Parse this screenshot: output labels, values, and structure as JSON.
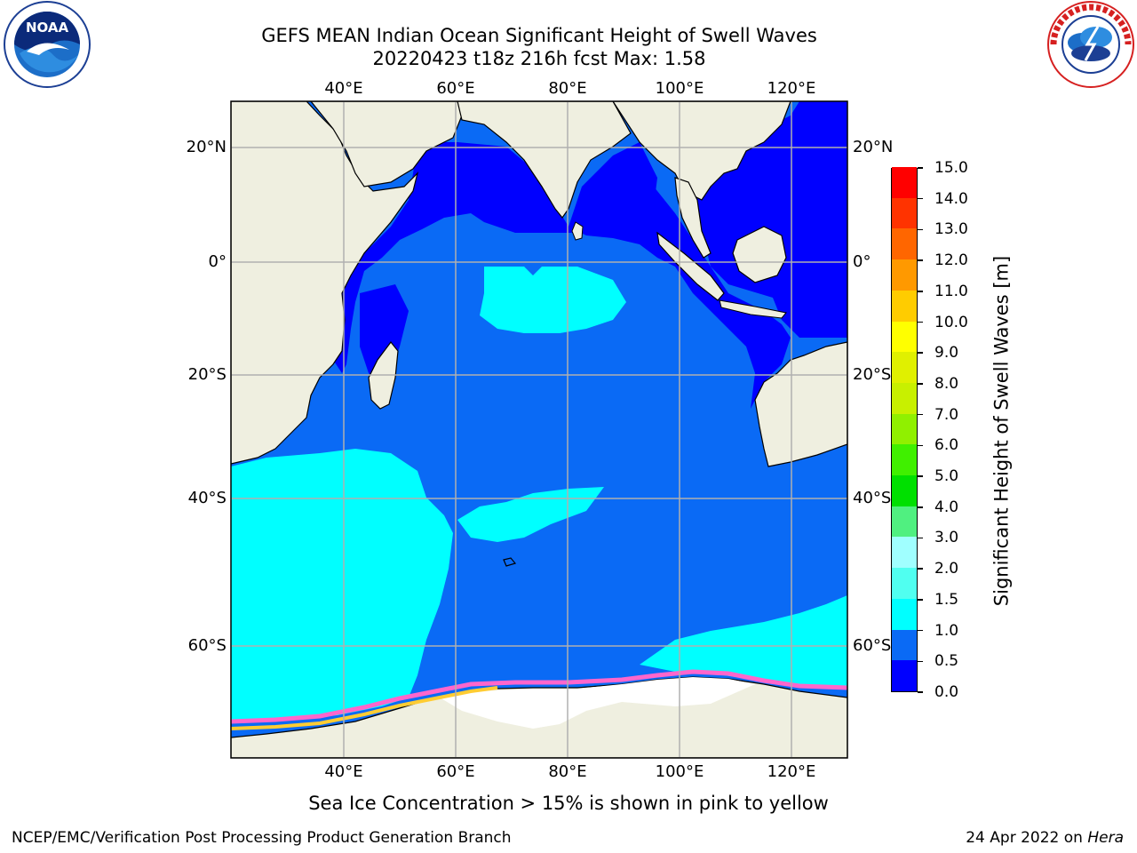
{
  "header": {
    "title_line1": "GEFS MEAN Indian Ocean Significant Height of Swell Waves",
    "title_line2": "20220423 t18z 216h fcst   Max: 1.58"
  },
  "logos": {
    "left": {
      "text": "NOAA",
      "ring_text": "NATIONAL OCEANIC AND ATMOSPHERIC ADMINISTRATION  U.S. DEPARTMENT OF COMMERCE"
    },
    "right": {
      "ring_text": "NATIONAL WEATHER SERVICE"
    }
  },
  "map": {
    "lon_labels": [
      "40°E",
      "60°E",
      "80°E",
      "100°E",
      "120°E"
    ],
    "lat_labels": [
      "20°N",
      "0°",
      "20°S",
      "40°S",
      "60°S"
    ],
    "colors": {
      "land": "#efefe0",
      "ice": "#ffffff",
      "deep_blue": "#0000ff",
      "mid_blue": "#0a6af5",
      "cyan": "#00ffff",
      "gridline": "#b0b0b0"
    }
  },
  "colorbar": {
    "title": "Significant Height of Swell Waves [m]",
    "labels": [
      "0.0",
      "0.5",
      "1.0",
      "1.5",
      "2.0",
      "3.0",
      "4.0",
      "5.0",
      "6.0",
      "7.0",
      "8.0",
      "9.0",
      "10.0",
      "11.0",
      "12.0",
      "13.0",
      "14.0",
      "15.0"
    ],
    "colors": [
      "#0000ff",
      "#0a6af5",
      "#00ffff",
      "#50fff0",
      "#a0ffff",
      "#50f080",
      "#00e000",
      "#40f000",
      "#90f000",
      "#c8f000",
      "#e0f000",
      "#ffff00",
      "#ffcc00",
      "#ff9900",
      "#ff6600",
      "#ff3300",
      "#ff0000"
    ]
  },
  "note": "Sea Ice Concentration > 15% is shown in pink to yellow",
  "footer": {
    "left": "NCEP/EMC/Verification Post Processing Product Generation Branch",
    "right_date": "24 Apr 2022 on",
    "right_machine": "Hera"
  }
}
